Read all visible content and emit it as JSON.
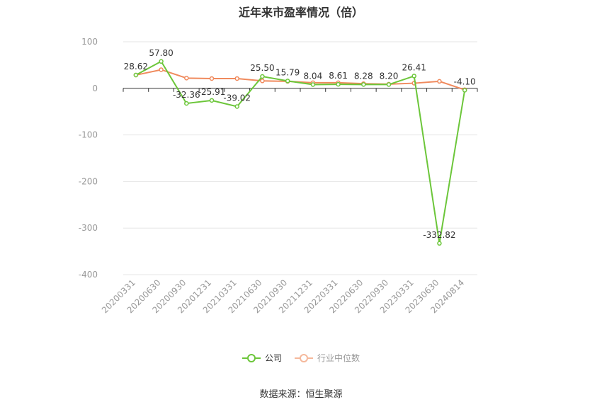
{
  "title": "近年来市盈率情况（倍）",
  "source": "数据来源：恒生聚源",
  "colors": {
    "company": "#6cc63a",
    "industry": "#f08a5d",
    "grid": "#e6e6e6",
    "axis": "#999999"
  },
  "chart_data": {
    "type": "line",
    "title": "近年来市盈率情况（倍）",
    "xlabel": "",
    "ylabel": "",
    "ylim": [
      -400,
      100
    ],
    "yticks": [
      100,
      0,
      -100,
      -200,
      -300,
      -400
    ],
    "grid": true,
    "legend_position": "bottom",
    "categories": [
      "20200331",
      "20200630",
      "20200930",
      "20201231",
      "20210331",
      "20210630",
      "20210930",
      "20211231",
      "20220331",
      "20220630",
      "20220930",
      "20230331",
      "20230630",
      "20240814"
    ],
    "series": [
      {
        "name": "公司",
        "values": [
          28.62,
          57.8,
          -32.36,
          -25.91,
          -39.02,
          25.5,
          15.79,
          8.04,
          8.61,
          8.28,
          8.2,
          26.41,
          -332.82,
          -4.1
        ],
        "labels": [
          "28.62",
          "57.80",
          "-32.36",
          "-25.91",
          "-39.02",
          "25.50",
          "15.79",
          "8.04",
          "8.61",
          "8.28",
          "8.20",
          "26.41",
          "-332.82",
          "-4.10"
        ]
      },
      {
        "name": "行业中位数",
        "values": [
          28.5,
          40,
          22,
          21,
          21,
          16,
          15,
          12,
          12,
          10,
          9,
          11,
          15,
          -3
        ]
      }
    ]
  }
}
